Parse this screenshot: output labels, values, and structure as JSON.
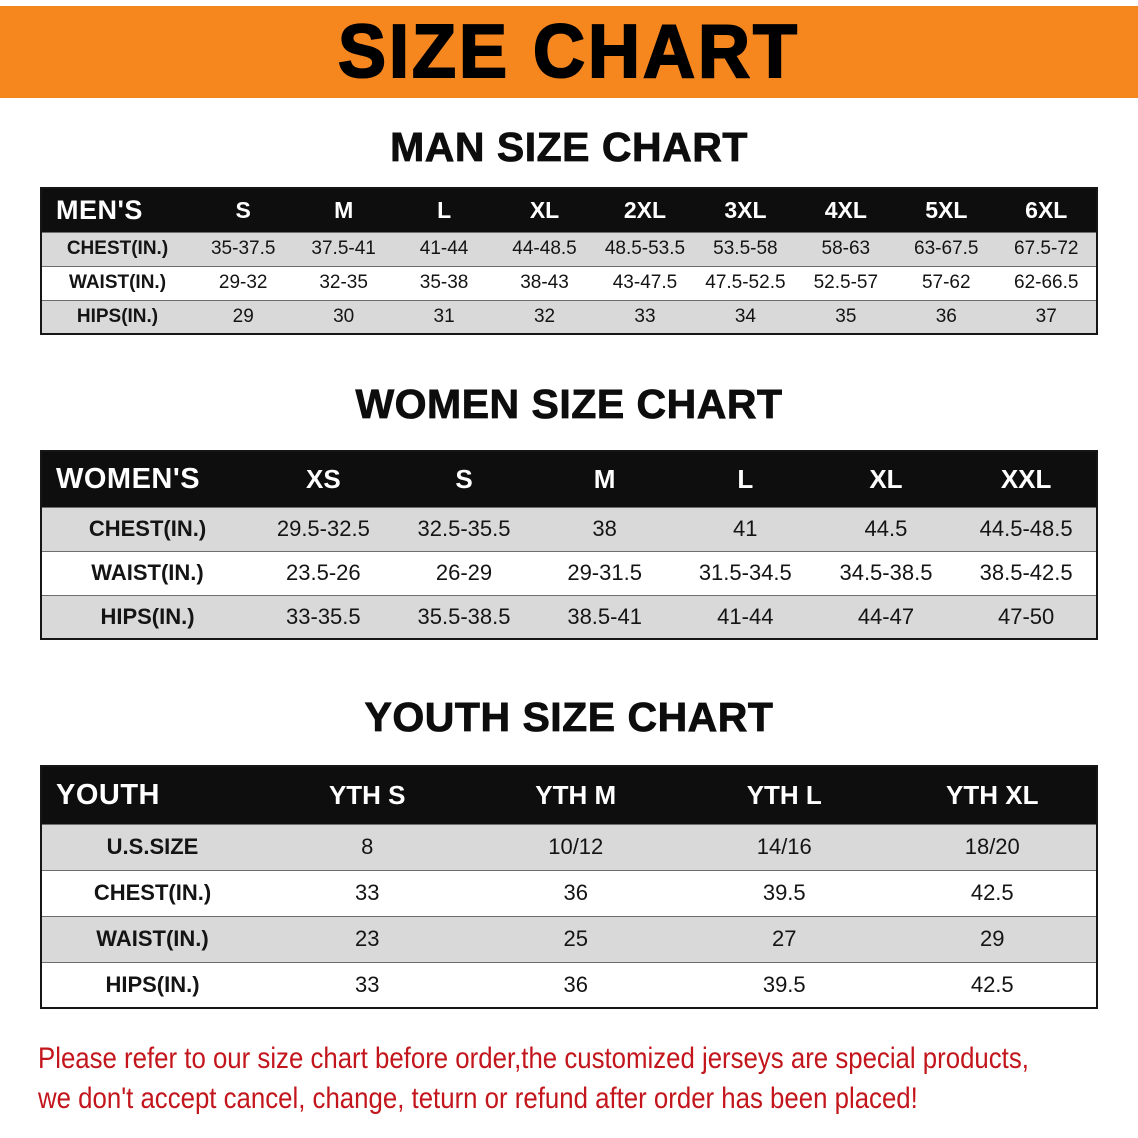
{
  "banner": {
    "title": "SIZE CHART"
  },
  "colors": {
    "banner_orange": "#f6871f",
    "header_black": "#0e0e0e",
    "row_gray": "#d9d9d9",
    "disclaimer_red": "#c3161c"
  },
  "sections": [
    {
      "heading": "MAN SIZE CHART",
      "table": {
        "header": [
          "MEN'S",
          "S",
          "M",
          "L",
          "XL",
          "2XL",
          "3XL",
          "4XL",
          "5XL",
          "6XL"
        ],
        "rows": [
          [
            "CHEST(IN.)",
            "35-37.5",
            "37.5-41",
            "41-44",
            "44-48.5",
            "48.5-53.5",
            "53.5-58",
            "58-63",
            "63-67.5",
            "67.5-72"
          ],
          [
            "WAIST(IN.)",
            "29-32",
            "32-35",
            "35-38",
            "38-43",
            "43-47.5",
            "47.5-52.5",
            "52.5-57",
            "57-62",
            "62-66.5"
          ],
          [
            "HIPS(IN.)",
            "29",
            "30",
            "31",
            "32",
            "33",
            "34",
            "35",
            "36",
            "37"
          ]
        ]
      }
    },
    {
      "heading": "WOMEN SIZE CHART",
      "table": {
        "header": [
          "WOMEN'S",
          "XS",
          "S",
          "M",
          "L",
          "XL",
          "XXL"
        ],
        "rows": [
          [
            "CHEST(IN.)",
            "29.5-32.5",
            "32.5-35.5",
            "38",
            "41",
            "44.5",
            "44.5-48.5"
          ],
          [
            "WAIST(IN.)",
            "23.5-26",
            "26-29",
            "29-31.5",
            "31.5-34.5",
            "34.5-38.5",
            "38.5-42.5"
          ],
          [
            "HIPS(IN.)",
            "33-35.5",
            "35.5-38.5",
            "38.5-41",
            "41-44",
            "44-47",
            "47-50"
          ]
        ]
      }
    },
    {
      "heading": "YOUTH SIZE CHART",
      "table": {
        "header": [
          "YOUTH",
          "YTH S",
          "YTH M",
          "YTH L",
          "YTH XL"
        ],
        "rows": [
          [
            "U.S.SIZE",
            "8",
            "10/12",
            "14/16",
            "18/20"
          ],
          [
            "CHEST(IN.)",
            "33",
            "36",
            "39.5",
            "42.5"
          ],
          [
            "WAIST(IN.)",
            "23",
            "25",
            "27",
            "29"
          ],
          [
            "HIPS(IN.)",
            "33",
            "36",
            "39.5",
            "42.5"
          ]
        ]
      }
    }
  ],
  "footer": {
    "line1": "Please refer to our size chart before order,the customized jerseys are special products,",
    "line2": "we don't accept cancel, change, teturn or refund after order has been placed!"
  }
}
